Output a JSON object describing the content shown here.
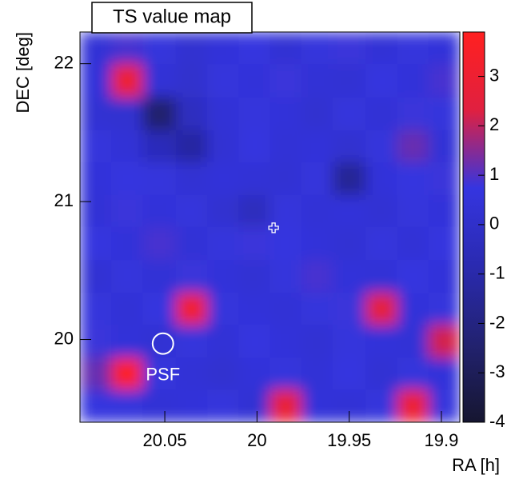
{
  "chart_data": {
    "type": "heatmap",
    "title": "TS value map",
    "xlabel": "RA [h]",
    "ylabel": "DEC [deg]",
    "xlim": [
      20.096,
      19.89
    ],
    "ylim": [
      19.4,
      22.23
    ],
    "xticks": [
      20.05,
      20,
      19.95,
      19.9
    ],
    "yticks": [
      20,
      21,
      22
    ],
    "zlim": [
      -4,
      3.9
    ],
    "zticks": [
      3,
      2,
      1,
      0,
      -1,
      -2,
      -3,
      -4
    ],
    "colors": [
      "#161630",
      "#222270",
      "#2a2ab0",
      "#3535e0",
      "#e02040",
      "#ff2020"
    ],
    "xbins": [
      20.096,
      20.079,
      20.062,
      20.044,
      20.027,
      20.01,
      19.993,
      19.976,
      19.959,
      19.941,
      19.924,
      19.907,
      19.89
    ],
    "ybins": [
      19.4,
      19.64,
      19.87,
      20.11,
      20.34,
      20.58,
      20.82,
      21.05,
      21.29,
      21.52,
      21.76,
      22.0,
      22.23
    ],
    "z": [
      [
        0.7,
        0.6,
        0.4,
        0.5,
        0.6,
        0.3,
        2.8,
        0.5,
        0.4,
        0.6,
        3.0,
        0.6
      ],
      [
        1.2,
        3.8,
        0.6,
        0.4,
        0.2,
        0.5,
        0.6,
        0.4,
        0.7,
        0.3,
        0.6,
        0.5
      ],
      [
        0.8,
        0.5,
        0.3,
        0.6,
        0.4,
        0.7,
        0.5,
        0.3,
        0.6,
        0.5,
        0.4,
        2.2
      ],
      [
        0.6,
        0.4,
        0.7,
        3.2,
        0.6,
        0.5,
        0.4,
        0.6,
        0.8,
        2.6,
        0.5,
        0.6
      ],
      [
        0.3,
        0.6,
        0.4,
        0.8,
        0.5,
        0.3,
        0.6,
        0.9,
        0.5,
        0.4,
        0.7,
        0.5
      ],
      [
        0.7,
        0.5,
        0.9,
        0.4,
        0.6,
        0.8,
        0.7,
        0.5,
        0.3,
        0.6,
        0.4,
        0.7
      ],
      [
        0.4,
        0.8,
        0.5,
        0.6,
        0.2,
        -0.4,
        0.6,
        0.4,
        0.5,
        0.3,
        0.6,
        0.5
      ],
      [
        0.5,
        0.7,
        0.6,
        0.3,
        0.5,
        0.4,
        0.3,
        0.6,
        -1.5,
        0.5,
        0.7,
        0.8
      ],
      [
        0.6,
        0.4,
        -0.5,
        -1.2,
        0.3,
        0.7,
        0.4,
        0.5,
        0.2,
        0.6,
        1.2,
        0.4
      ],
      [
        0.3,
        0.2,
        -2.5,
        -0.3,
        0.4,
        0.6,
        0.5,
        0.2,
        0.6,
        0.4,
        0.8,
        0.6
      ],
      [
        0.5,
        3.0,
        0.4,
        0.1,
        0.6,
        0.5,
        0.8,
        0.4,
        0.3,
        0.7,
        0.5,
        0.9
      ],
      [
        0.4,
        0.9,
        0.6,
        0.2,
        0.5,
        0.7,
        0.3,
        0.6,
        0.8,
        0.4,
        0.6,
        0.5
      ]
    ],
    "psf": {
      "label": "PSF",
      "ra": 20.051,
      "dec": 19.97,
      "radius": 0.075
    },
    "source": {
      "ra": 19.991,
      "dec": 20.81
    }
  }
}
